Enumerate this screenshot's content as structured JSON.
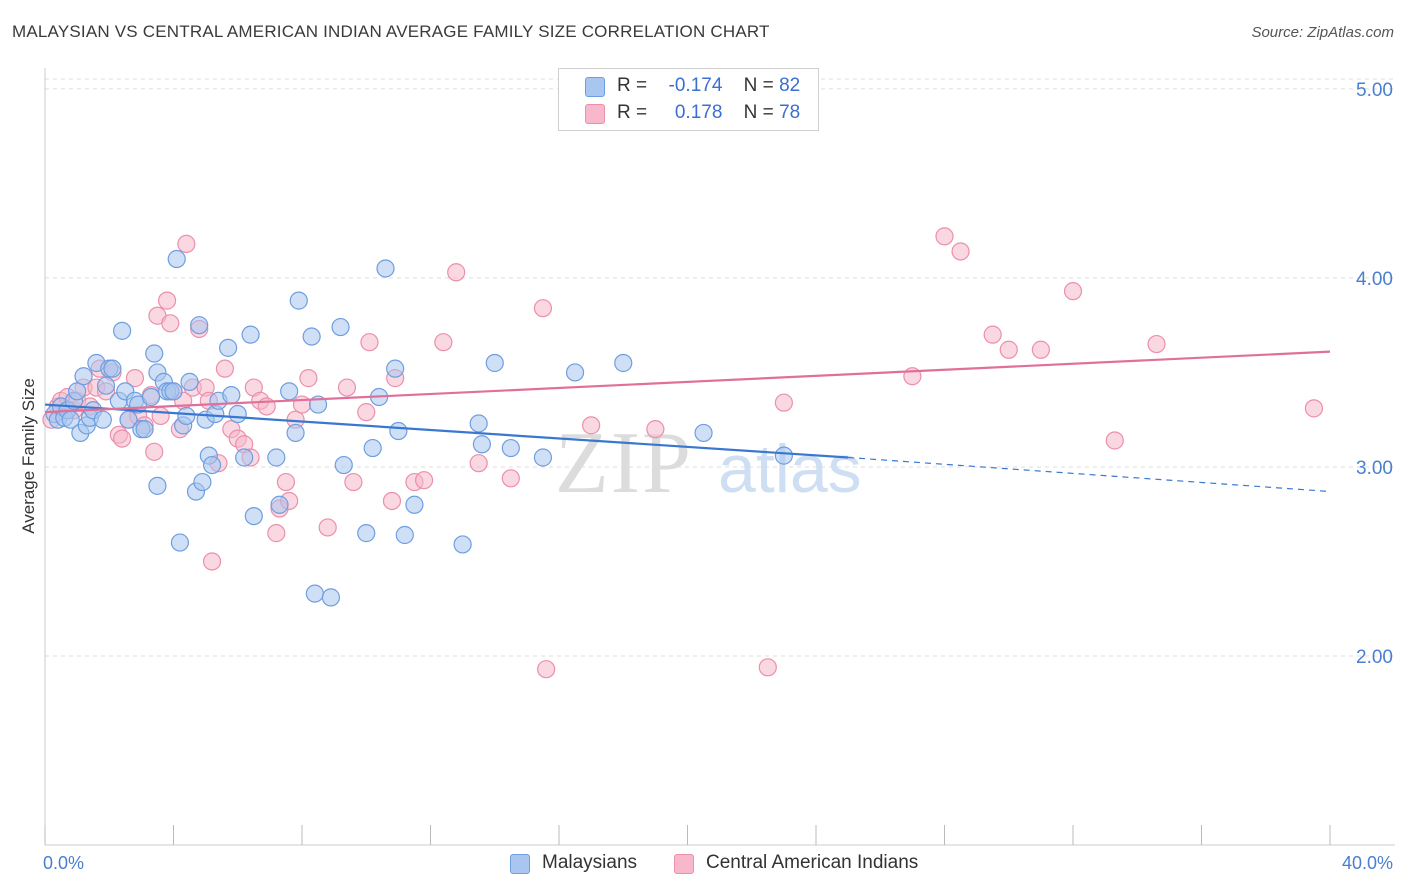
{
  "title": "MALAYSIAN VS CENTRAL AMERICAN INDIAN AVERAGE FAMILY SIZE CORRELATION CHART",
  "source": "Source: ZipAtlas.com",
  "watermark": {
    "zip": "ZIP",
    "atlas": "atlas"
  },
  "legend": {
    "series1": {
      "r_label": "R =",
      "r_value": "-0.174",
      "n_label": "N =",
      "n_value": "82"
    },
    "series2": {
      "r_label": "R =",
      "r_value": "0.178",
      "n_label": "N =",
      "n_value": "78"
    }
  },
  "colors": {
    "blue_fill": "#a8c6ef",
    "blue_stroke": "#6f9ee0",
    "blue_line": "#3a78d0",
    "pink_fill": "#f6b8ca",
    "pink_stroke": "#ec8fab",
    "pink_line": "#e0709a",
    "axis_text": "#4a7fd0",
    "grid": "#dddddd"
  },
  "chart_data": {
    "type": "scatter",
    "title": "MALAYSIAN VS CENTRAL AMERICAN INDIAN AVERAGE FAMILY SIZE CORRELATION CHART",
    "xlabel": "",
    "ylabel": "Average Family Size",
    "xlim": [
      0,
      40
    ],
    "ylim": [
      1.0,
      5.1
    ],
    "x_tick_labels": [
      "0.0%",
      "40.0%"
    ],
    "y_ticks": [
      2.0,
      3.0,
      4.0,
      5.0
    ],
    "y_tick_labels": [
      "2.00",
      "3.00",
      "4.00",
      "5.00"
    ],
    "grid": true,
    "legend_position": "top-center",
    "series": [
      {
        "name": "Malaysians",
        "color": "#a8c6ef",
        "trend": {
          "x0": 0,
          "y0": 3.33,
          "x1": 25,
          "y1": 3.05,
          "dash_to_x": 40,
          "dash_to_y": 2.87
        },
        "points": [
          [
            0.3,
            3.28
          ],
          [
            0.4,
            3.25
          ],
          [
            0.5,
            3.32
          ],
          [
            0.6,
            3.26
          ],
          [
            0.7,
            3.3
          ],
          [
            0.8,
            3.25
          ],
          [
            0.9,
            3.35
          ],
          [
            1.0,
            3.4
          ],
          [
            1.1,
            3.18
          ],
          [
            1.2,
            3.48
          ],
          [
            1.3,
            3.22
          ],
          [
            1.4,
            3.26
          ],
          [
            1.5,
            3.3
          ],
          [
            1.6,
            3.55
          ],
          [
            1.8,
            3.25
          ],
          [
            1.9,
            3.43
          ],
          [
            2.0,
            3.52
          ],
          [
            2.1,
            3.52
          ],
          [
            2.3,
            3.35
          ],
          [
            2.4,
            3.72
          ],
          [
            2.5,
            3.4
          ],
          [
            2.6,
            3.25
          ],
          [
            2.8,
            3.35
          ],
          [
            2.9,
            3.33
          ],
          [
            3.0,
            3.2
          ],
          [
            3.1,
            3.2
          ],
          [
            3.3,
            3.37
          ],
          [
            3.4,
            3.6
          ],
          [
            3.5,
            2.9
          ],
          [
            3.5,
            3.5
          ],
          [
            3.7,
            3.45
          ],
          [
            3.8,
            3.4
          ],
          [
            3.9,
            3.4
          ],
          [
            4.0,
            3.4
          ],
          [
            4.1,
            4.1
          ],
          [
            4.2,
            2.6
          ],
          [
            4.3,
            3.22
          ],
          [
            4.4,
            3.27
          ],
          [
            4.5,
            3.45
          ],
          [
            4.7,
            2.87
          ],
          [
            4.8,
            3.75
          ],
          [
            4.9,
            2.92
          ],
          [
            5.0,
            3.25
          ],
          [
            5.1,
            3.06
          ],
          [
            5.2,
            3.01
          ],
          [
            5.3,
            3.28
          ],
          [
            5.4,
            3.35
          ],
          [
            5.7,
            3.63
          ],
          [
            5.8,
            3.38
          ],
          [
            6.0,
            3.28
          ],
          [
            6.2,
            3.05
          ],
          [
            6.4,
            3.7
          ],
          [
            6.5,
            2.74
          ],
          [
            7.2,
            3.05
          ],
          [
            7.3,
            2.8
          ],
          [
            7.6,
            3.4
          ],
          [
            7.8,
            3.18
          ],
          [
            7.9,
            3.88
          ],
          [
            8.3,
            3.69
          ],
          [
            8.4,
            2.33
          ],
          [
            8.5,
            3.33
          ],
          [
            8.9,
            2.31
          ],
          [
            9.2,
            3.74
          ],
          [
            9.3,
            3.01
          ],
          [
            10.0,
            2.65
          ],
          [
            10.2,
            3.1
          ],
          [
            10.4,
            3.37
          ],
          [
            10.6,
            4.05
          ],
          [
            10.9,
            3.52
          ],
          [
            11.0,
            3.19
          ],
          [
            11.2,
            2.64
          ],
          [
            11.5,
            2.8
          ],
          [
            13.0,
            2.59
          ],
          [
            13.5,
            3.23
          ],
          [
            13.6,
            3.12
          ],
          [
            14.0,
            3.55
          ],
          [
            14.5,
            3.1
          ],
          [
            15.5,
            3.05
          ],
          [
            16.5,
            3.5
          ],
          [
            18.0,
            3.55
          ],
          [
            20.5,
            3.18
          ],
          [
            23.0,
            3.06
          ]
        ]
      },
      {
        "name": "Central American Indians",
        "color": "#f6b8ca",
        "trend": {
          "x0": 0,
          "y0": 3.29,
          "x1": 40,
          "y1": 3.61
        },
        "points": [
          [
            0.2,
            3.25
          ],
          [
            0.4,
            3.32
          ],
          [
            0.5,
            3.35
          ],
          [
            0.7,
            3.37
          ],
          [
            0.9,
            3.3
          ],
          [
            1.0,
            3.35
          ],
          [
            1.2,
            3.42
          ],
          [
            1.4,
            3.32
          ],
          [
            1.6,
            3.42
          ],
          [
            1.7,
            3.52
          ],
          [
            1.9,
            3.4
          ],
          [
            2.1,
            3.5
          ],
          [
            2.3,
            3.17
          ],
          [
            2.4,
            3.15
          ],
          [
            2.6,
            3.25
          ],
          [
            2.8,
            3.47
          ],
          [
            2.9,
            3.27
          ],
          [
            3.1,
            3.22
          ],
          [
            3.3,
            3.38
          ],
          [
            3.4,
            3.08
          ],
          [
            3.5,
            3.8
          ],
          [
            3.6,
            3.27
          ],
          [
            3.8,
            3.88
          ],
          [
            3.9,
            3.76
          ],
          [
            4.0,
            3.4
          ],
          [
            4.2,
            3.2
          ],
          [
            4.3,
            3.35
          ],
          [
            4.4,
            4.18
          ],
          [
            4.6,
            3.42
          ],
          [
            4.8,
            3.73
          ],
          [
            5.0,
            3.42
          ],
          [
            5.1,
            3.35
          ],
          [
            5.2,
            2.5
          ],
          [
            5.4,
            3.02
          ],
          [
            5.6,
            3.52
          ],
          [
            5.8,
            3.2
          ],
          [
            6.0,
            3.15
          ],
          [
            6.2,
            3.12
          ],
          [
            6.4,
            3.05
          ],
          [
            6.5,
            3.42
          ],
          [
            6.7,
            3.35
          ],
          [
            6.9,
            3.32
          ],
          [
            7.2,
            2.65
          ],
          [
            7.3,
            2.78
          ],
          [
            7.5,
            2.92
          ],
          [
            7.6,
            2.82
          ],
          [
            7.8,
            3.25
          ],
          [
            8.0,
            3.33
          ],
          [
            8.2,
            3.47
          ],
          [
            8.8,
            2.68
          ],
          [
            9.4,
            3.42
          ],
          [
            9.6,
            2.92
          ],
          [
            10.0,
            3.29
          ],
          [
            10.1,
            3.66
          ],
          [
            10.8,
            2.82
          ],
          [
            10.9,
            3.47
          ],
          [
            11.5,
            2.92
          ],
          [
            11.8,
            2.93
          ],
          [
            12.4,
            3.66
          ],
          [
            12.8,
            4.03
          ],
          [
            13.5,
            3.02
          ],
          [
            14.5,
            2.94
          ],
          [
            15.5,
            3.84
          ],
          [
            15.6,
            1.93
          ],
          [
            17.0,
            3.22
          ],
          [
            19.0,
            3.2
          ],
          [
            22.5,
            1.94
          ],
          [
            23.0,
            3.34
          ],
          [
            27.0,
            3.48
          ],
          [
            28.0,
            4.22
          ],
          [
            28.5,
            4.14
          ],
          [
            29.5,
            3.7
          ],
          [
            30.0,
            3.62
          ],
          [
            31.0,
            3.62
          ],
          [
            32.0,
            3.93
          ],
          [
            33.3,
            3.14
          ],
          [
            34.6,
            3.65
          ],
          [
            39.5,
            3.31
          ]
        ]
      }
    ]
  },
  "bottom_legend": {
    "series1": "Malaysians",
    "series2": "Central American Indians"
  }
}
